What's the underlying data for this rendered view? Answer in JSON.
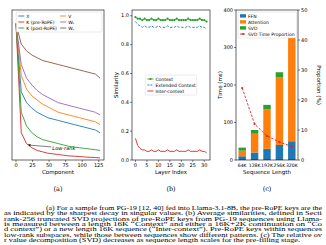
{
  "chart_data": [
    {
      "type": "line",
      "title": "(a)",
      "xlabel": "Component",
      "x": [
        0,
        8,
        16,
        24,
        32,
        40,
        48,
        56,
        64,
        72,
        80,
        88,
        96,
        104,
        112,
        120,
        127
      ],
      "xlim": [
        -6,
        133
      ],
      "xticks": [
        0,
        25,
        50,
        75,
        100,
        125
      ],
      "ylim": [
        0,
        1.1
      ],
      "tick_labels": "x",
      "legend": "upper right",
      "grid": false,
      "annotations": [
        {
          "text": "Low-rank",
          "x": 55,
          "y": 0.085,
          "target_x": 18,
          "target_y": 0.115
        }
      ],
      "series": [
        {
          "name": "X",
          "color": "#1f77b4",
          "values": [
            1,
            0.5,
            0.42,
            0.38,
            0.35,
            0.33,
            0.31,
            0.3,
            0.29,
            0.28,
            0.27,
            0.26,
            0.25,
            0.24,
            0.23,
            0.22,
            0.2
          ]
        },
        {
          "name": "K (pre-RoPE)",
          "color": "#d62728",
          "values": [
            1,
            0.2,
            0.12,
            0.09,
            0.07,
            0.06,
            0.05,
            0.045,
            0.04,
            0.035,
            0.03,
            0.028,
            0.025,
            0.022,
            0.02,
            0.018,
            0.015
          ]
        },
        {
          "name": "K (post-RoPE)",
          "color": "#2ca02c",
          "values": [
            1,
            0.35,
            0.25,
            0.2,
            0.17,
            0.15,
            0.14,
            0.13,
            0.12,
            0.11,
            0.1,
            0.095,
            0.09,
            0.085,
            0.08,
            0.075,
            0.07
          ]
        },
        {
          "name": "V",
          "color": "#ff7f0e",
          "values": [
            1,
            0.62,
            0.52,
            0.47,
            0.44,
            0.41,
            0.39,
            0.37,
            0.35,
            0.34,
            0.33,
            0.32,
            0.31,
            0.3,
            0.29,
            0.28,
            0.26
          ]
        },
        {
          "name": "Wₖ",
          "color": "#9467bd",
          "values": [
            1,
            0.7,
            0.6,
            0.55,
            0.51,
            0.48,
            0.46,
            0.44,
            0.42,
            0.41,
            0.4,
            0.39,
            0.38,
            0.37,
            0.36,
            0.35,
            0.33
          ]
        },
        {
          "name": "Wᵥ",
          "color": "#8c564b",
          "values": [
            1,
            0.85,
            0.8,
            0.77,
            0.75,
            0.73,
            0.72,
            0.71,
            0.7,
            0.69,
            0.68,
            0.67,
            0.66,
            0.65,
            0.64,
            0.63,
            0.6
          ]
        }
      ]
    },
    {
      "type": "line",
      "title": "(b)",
      "xlabel": "Layer Index",
      "ylabel": "Similarity",
      "x": [
        0,
        1,
        2,
        3,
        4,
        5,
        6,
        7,
        8,
        9,
        10,
        11,
        12,
        13,
        14,
        15,
        16,
        17,
        18,
        19,
        20,
        21,
        22,
        23,
        24,
        25,
        26,
        27,
        28,
        29,
        30,
        31
      ],
      "xlim": [
        -1.5,
        32.5
      ],
      "xticks": [
        0,
        5,
        10,
        15,
        20,
        25,
        30
      ],
      "ylim": [
        0,
        1.04
      ],
      "yticks": [
        {
          "value": 0,
          "label": "0.0"
        },
        {
          "value": 0.2,
          "label": "0.2"
        },
        {
          "value": 0.4,
          "label": "0.4"
        },
        {
          "value": 0.6,
          "label": "0.6"
        },
        {
          "value": 0.8,
          "label": "0.8"
        },
        {
          "value": 1,
          "label": "1.0"
        }
      ],
      "legend": "center",
      "grid": false,
      "series": [
        {
          "name": "Context",
          "color": "#2ca02c",
          "marker": "circle",
          "line_style": "solid",
          "values": [
            0.99,
            0.98,
            0.98,
            0.97,
            0.98,
            0.97,
            0.97,
            0.98,
            0.97,
            0.97,
            0.98,
            0.97,
            0.97,
            0.97,
            0.98,
            0.97,
            0.97,
            0.97,
            0.98,
            0.97,
            0.97,
            0.97,
            0.97,
            0.98,
            0.97,
            0.97,
            0.97,
            0.97,
            0.98,
            0.97,
            0.97,
            0.96
          ]
        },
        {
          "name": "Extended Context",
          "color": "#1f77b4",
          "line_style": "dashed",
          "values": [
            0.96,
            0.94,
            0.93,
            0.92,
            0.93,
            0.92,
            0.92,
            0.93,
            0.92,
            0.92,
            0.93,
            0.92,
            0.92,
            0.92,
            0.93,
            0.92,
            0.92,
            0.92,
            0.93,
            0.92,
            0.92,
            0.92,
            0.92,
            0.93,
            0.92,
            0.92,
            0.92,
            0.92,
            0.93,
            0.92,
            0.92,
            0.91
          ]
        },
        {
          "name": "Inter-context",
          "color": "#d62728",
          "line_style": "solid",
          "values": [
            0.15,
            0.1,
            0.08,
            0.07,
            0.07,
            0.06,
            0.06,
            0.07,
            0.06,
            0.06,
            0.07,
            0.06,
            0.06,
            0.06,
            0.07,
            0.06,
            0.06,
            0.06,
            0.07,
            0.06,
            0.06,
            0.06,
            0.06,
            0.07,
            0.06,
            0.06,
            0.06,
            0.06,
            0.07,
            0.06,
            0.06,
            0.05
          ]
        }
      ]
    },
    {
      "type": "bar",
      "title": "(c)",
      "xlabel": "Sequence Length",
      "ylabel": "Time (ms)",
      "y2label": "Proportion (%)",
      "categories": [
        "64K",
        "128K",
        "192K",
        "256K",
        "320K"
      ],
      "stacked": true,
      "ylim": [
        0,
        400
      ],
      "yticks": [
        0,
        100,
        200,
        300,
        400
      ],
      "y2lim": [
        0,
        50
      ],
      "y2ticks": [
        0,
        10,
        20,
        30,
        40,
        50
      ],
      "legend": "upper left",
      "grid": false,
      "series": [
        {
          "name": "FFN",
          "color": "#1f77b4",
          "values": [
            10,
            20,
            30,
            40,
            50
          ]
        },
        {
          "name": "Attention",
          "color": "#ff7f0e",
          "values": [
            15,
            50,
            105,
            180,
            280
          ]
        },
        {
          "name": "SVD",
          "color": "#2ca02c",
          "values": [
            8,
            10,
            12,
            14,
            16
          ]
        },
        {
          "name": "SVD Time Proportion",
          "color": "#d62728",
          "type": "line",
          "axis": "y2",
          "marker": "circle",
          "line_style": "dashed",
          "values": [
            24,
            12,
            8,
            6,
            4.5
          ]
        }
      ]
    }
  ],
  "caption": {
    "lines": [
      "(a) For a sample from PG-19 [12, 40] fed into Llama-3.1-8B, the pre-RoPE keys are the",
      "as indicated by the sharpest decay in singular values. (b) Average similarities, defined in Secti",
      "rank-256 truncated SVD projections of pre-RoPE keys from PG-19 sequences using Llama-",
      "is measured between a length 16K “Context” and either a 16K+2K continuation on “Co",
      "d context”) or a new length 16K sequence (“Inter-context”). Pre-RoPE keys within sequences",
      "low-rank subspaces, while those between sequences show different patterns. (c) The relative ov",
      "r value decomposition (SVD) decreases as sequence length scales for the pre-filling stage."
    ]
  }
}
